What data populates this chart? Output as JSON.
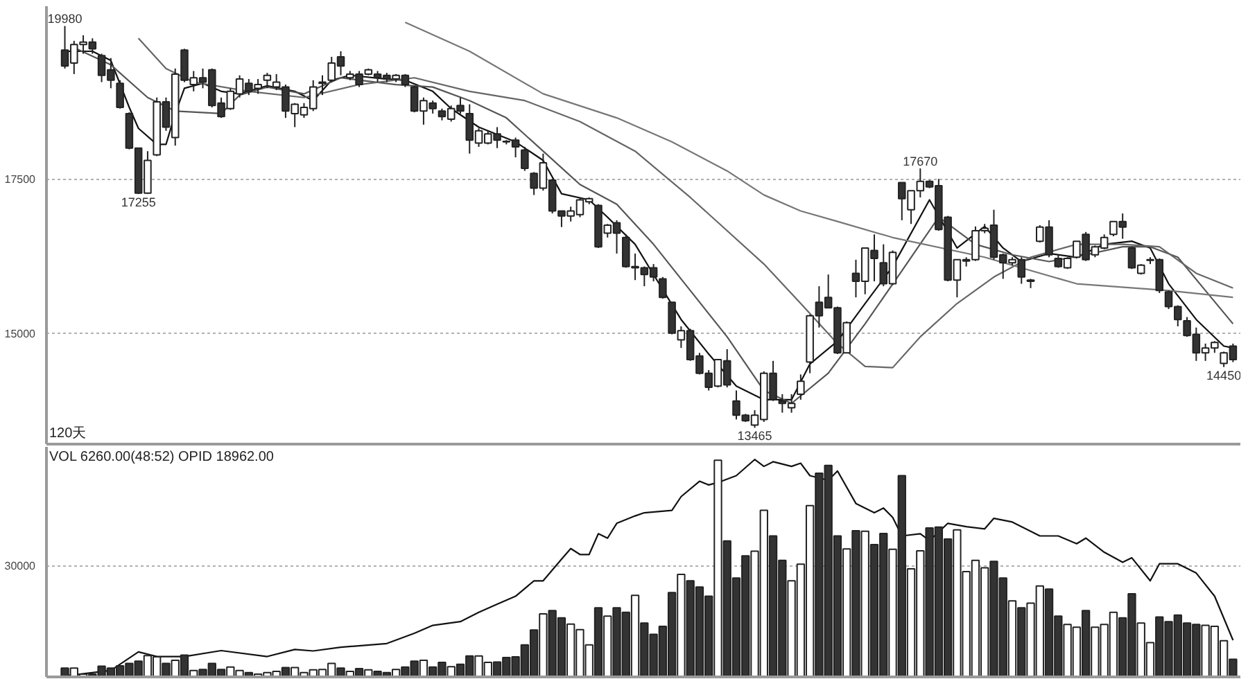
{
  "chart_data": [
    {
      "type": "candlestick",
      "ylim": [
        13200,
        20300
      ],
      "yticks": [
        15000,
        17500
      ],
      "tick_labels": "y",
      "grid": "y",
      "categories": [
        null,
        null,
        null,
        null,
        null,
        null,
        null,
        null,
        null,
        null,
        null,
        null,
        null,
        null,
        null,
        null,
        null,
        null,
        null,
        null,
        null,
        null,
        null,
        null,
        null,
        null,
        null,
        null,
        null,
        null,
        null,
        null,
        null,
        null,
        null,
        null,
        null,
        null,
        null,
        null,
        null,
        null,
        null,
        null,
        null,
        null,
        null,
        null,
        null,
        null,
        null,
        null,
        null,
        null,
        null,
        null,
        null,
        null,
        null,
        null,
        null,
        null,
        null,
        null,
        null,
        null,
        null,
        null,
        null,
        null,
        null,
        null,
        null,
        null,
        null,
        null,
        null,
        null,
        null,
        null,
        null,
        null,
        null,
        null,
        null,
        null,
        null,
        null,
        null,
        null,
        null,
        null,
        null,
        null,
        null,
        null,
        null,
        null,
        null,
        null,
        null,
        null,
        null,
        null,
        null,
        null,
        null,
        null,
        null,
        null,
        null,
        null,
        null,
        null,
        null,
        null,
        null,
        null,
        null,
        null,
        null,
        null,
        null,
        null,
        null,
        null,
        null,
        null
      ],
      "ohlc": [
        [
          19590,
          19980,
          19290,
          19330
        ],
        [
          19380,
          19740,
          19200,
          19680
        ],
        [
          19680,
          19830,
          19530,
          19720
        ],
        [
          19720,
          19780,
          19530,
          19610
        ],
        [
          19500,
          19530,
          19070,
          19180
        ],
        [
          19270,
          19460,
          18970,
          19100
        ],
        [
          19050,
          19100,
          18640,
          18660
        ],
        [
          18560,
          18580,
          17980,
          18000
        ],
        [
          18000,
          18000,
          17255,
          17270
        ],
        [
          17270,
          17950,
          17260,
          17800
        ],
        [
          17890,
          18820,
          17870,
          18750
        ],
        [
          18750,
          18820,
          18280,
          18340
        ],
        [
          18170,
          19290,
          18040,
          19200
        ],
        [
          19590,
          19610,
          19070,
          19100
        ],
        [
          19030,
          19250,
          18920,
          19140
        ],
        [
          19140,
          19290,
          18970,
          19070
        ],
        [
          19270,
          19290,
          18660,
          18690
        ],
        [
          18730,
          18820,
          18490,
          18510
        ],
        [
          18640,
          18970,
          18620,
          18920
        ],
        [
          18880,
          19180,
          18820,
          19120
        ],
        [
          19050,
          19120,
          18860,
          18920
        ],
        [
          18970,
          19120,
          18880,
          19030
        ],
        [
          19100,
          19220,
          18970,
          19180
        ],
        [
          18990,
          19200,
          18940,
          19070
        ],
        [
          18990,
          19030,
          18490,
          18600
        ],
        [
          18560,
          18730,
          18340,
          18710
        ],
        [
          18540,
          18730,
          18490,
          18660
        ],
        [
          18640,
          19100,
          18600,
          18990
        ],
        [
          19050,
          19180,
          18860,
          19070
        ],
        [
          19100,
          19480,
          19070,
          19380
        ],
        [
          19480,
          19570,
          19180,
          19330
        ],
        [
          19140,
          19250,
          19100,
          19200
        ],
        [
          19200,
          19250,
          18990,
          19030
        ],
        [
          19200,
          19290,
          19180,
          19270
        ],
        [
          19200,
          19250,
          19070,
          19140
        ],
        [
          19180,
          19220,
          19070,
          19120
        ],
        [
          19120,
          19200,
          19070,
          19180
        ],
        [
          19180,
          19200,
          18990,
          19030
        ],
        [
          18990,
          19010,
          18580,
          18600
        ],
        [
          18600,
          18820,
          18380,
          18770
        ],
        [
          18730,
          18770,
          18560,
          18640
        ],
        [
          18600,
          18640,
          18450,
          18510
        ],
        [
          18470,
          18690,
          18430,
          18640
        ],
        [
          18690,
          18820,
          18560,
          18600
        ],
        [
          18560,
          18710,
          17910,
          18130
        ],
        [
          18080,
          18320,
          18020,
          18280
        ],
        [
          18080,
          18280,
          18060,
          18230
        ],
        [
          18230,
          18340,
          18000,
          18130
        ],
        [
          18110,
          18130,
          18060,
          18100
        ],
        [
          18130,
          18170,
          17850,
          18020
        ],
        [
          17970,
          18020,
          17630,
          17670
        ],
        [
          17590,
          17610,
          17240,
          17350
        ],
        [
          17350,
          17910,
          17310,
          17760
        ],
        [
          17480,
          17500,
          16940,
          16980
        ],
        [
          16980,
          16980,
          16720,
          16900
        ],
        [
          16900,
          17050,
          16810,
          16980
        ],
        [
          16920,
          17200,
          16880,
          17160
        ],
        [
          17130,
          17200,
          17090,
          17180
        ],
        [
          17070,
          17090,
          16380,
          16400
        ],
        [
          16620,
          16770,
          16550,
          16750
        ],
        [
          16790,
          16830,
          16290,
          16620
        ],
        [
          16550,
          16600,
          16060,
          16080
        ],
        [
          16060,
          16290,
          15860,
          16080
        ],
        [
          16060,
          16080,
          15760,
          15950
        ],
        [
          16060,
          16120,
          15840,
          15910
        ],
        [
          15880,
          15910,
          15560,
          15580
        ],
        [
          15500,
          15500,
          14980,
          15000
        ],
        [
          14890,
          15110,
          14760,
          15040
        ],
        [
          15040,
          15070,
          14550,
          14570
        ],
        [
          14630,
          14680,
          14330,
          14350
        ],
        [
          14350,
          14400,
          14070,
          14120
        ],
        [
          14140,
          14570,
          14120,
          14570
        ],
        [
          14550,
          14740,
          14120,
          14160
        ],
        [
          13900,
          14070,
          13600,
          13670
        ],
        [
          13670,
          13690,
          13560,
          13580
        ],
        [
          13510,
          13750,
          13465,
          13670
        ],
        [
          13600,
          14380,
          13560,
          14350
        ],
        [
          14350,
          14550,
          13900,
          13920
        ],
        [
          13900,
          14010,
          13710,
          13860
        ],
        [
          13790,
          14010,
          13710,
          13860
        ],
        [
          14010,
          14330,
          13920,
          14220
        ],
        [
          14530,
          15300,
          14350,
          15280
        ],
        [
          15500,
          15760,
          15090,
          15280
        ],
        [
          15580,
          15950,
          15410,
          15410
        ],
        [
          15410,
          15430,
          14660,
          14680
        ],
        [
          14680,
          15190,
          14680,
          15170
        ],
        [
          15970,
          16190,
          15580,
          15840
        ],
        [
          15840,
          16380,
          15630,
          16380
        ],
        [
          16340,
          16600,
          15840,
          16210
        ],
        [
          16140,
          16440,
          15760,
          15800
        ],
        [
          15800,
          16340,
          15780,
          16310
        ],
        [
          17440,
          17440,
          16830,
          17180
        ],
        [
          17000,
          17310,
          16770,
          17310
        ],
        [
          17310,
          17670,
          17200,
          17460
        ],
        [
          17460,
          17480,
          17350,
          17370
        ],
        [
          17390,
          17500,
          16660,
          16680
        ],
        [
          16880,
          16900,
          15840,
          15860
        ],
        [
          15860,
          16190,
          15580,
          16190
        ],
        [
          16170,
          16230,
          16080,
          16190
        ],
        [
          16190,
          16730,
          16170,
          16660
        ],
        [
          16660,
          16770,
          16620,
          16700
        ],
        [
          16750,
          17000,
          16190,
          16230
        ],
        [
          16270,
          16290,
          15880,
          16140
        ],
        [
          16140,
          16230,
          16100,
          16190
        ],
        [
          16190,
          16230,
          15800,
          15910
        ],
        [
          15840,
          15880,
          15730,
          15860
        ],
        [
          16490,
          16750,
          16470,
          16720
        ],
        [
          16720,
          16830,
          16230,
          16270
        ],
        [
          16210,
          16270,
          16060,
          16080
        ],
        [
          16060,
          16230,
          16040,
          16210
        ],
        [
          16230,
          16490,
          16210,
          16490
        ],
        [
          16600,
          16640,
          16170,
          16190
        ],
        [
          16270,
          16420,
          16230,
          16400
        ],
        [
          16380,
          16600,
          16360,
          16550
        ],
        [
          16600,
          16810,
          16570,
          16810
        ],
        [
          16810,
          16940,
          16530,
          16720
        ],
        [
          16380,
          16400,
          16040,
          16060
        ],
        [
          15970,
          16120,
          15950,
          16100
        ],
        [
          16180,
          16230,
          16120,
          16190
        ],
        [
          16190,
          16210,
          15650,
          15690
        ],
        [
          15670,
          15690,
          15390,
          15430
        ],
        [
          15430,
          15450,
          15110,
          15220
        ],
        [
          15200,
          15260,
          14940,
          14960
        ],
        [
          14980,
          15090,
          14550,
          14680
        ],
        [
          14680,
          14830,
          14550,
          14760
        ],
        [
          14760,
          14870,
          14680,
          14850
        ],
        [
          14510,
          14700,
          14450,
          14680
        ],
        [
          14790,
          14830,
          14530,
          14570
        ]
      ],
      "colors": [
        "#333333",
        "#ffffff",
        "#ffffff",
        "#333333",
        "#333333",
        "#333333",
        "#333333",
        "#333333",
        "#333333",
        "#ffffff",
        "#ffffff",
        "#333333",
        "#ffffff",
        "#333333",
        "#ffffff",
        "#333333",
        "#333333",
        "#333333",
        "#ffffff",
        "#ffffff",
        "#333333",
        "#ffffff",
        "#ffffff",
        "#ffffff",
        "#333333",
        "#ffffff",
        "#ffffff",
        "#ffffff",
        "#ffffff",
        "#ffffff",
        "#333333",
        "#ffffff",
        "#333333",
        "#ffffff",
        "#333333",
        "#333333",
        "#ffffff",
        "#333333",
        "#333333",
        "#ffffff",
        "#333333",
        "#333333",
        "#ffffff",
        "#333333",
        "#333333",
        "#ffffff",
        "#ffffff",
        "#333333",
        "#333333",
        "#333333",
        "#333333",
        "#333333",
        "#ffffff",
        "#333333",
        "#333333",
        "#ffffff",
        "#ffffff",
        "#ffffff",
        "#333333",
        "#ffffff",
        "#333333",
        "#333333",
        "#ffffff",
        "#333333",
        "#333333",
        "#333333",
        "#333333",
        "#ffffff",
        "#333333",
        "#333333",
        "#333333",
        "#ffffff",
        "#333333",
        "#333333",
        "#333333",
        "#ffffff",
        "#ffffff",
        "#333333",
        "#333333",
        "#ffffff",
        "#ffffff",
        "#ffffff",
        "#333333",
        "#333333",
        "#333333",
        "#ffffff",
        "#333333",
        "#ffffff",
        "#333333",
        "#333333",
        "#ffffff",
        "#333333",
        "#ffffff",
        "#ffffff",
        "#333333",
        "#333333",
        "#333333",
        "#ffffff",
        "#ffffff",
        "#ffffff",
        "#ffffff",
        "#333333",
        "#333333",
        "#ffffff",
        "#333333",
        "#ffffff",
        "#ffffff",
        "#333333",
        "#333333",
        "#ffffff",
        "#ffffff",
        "#333333",
        "#ffffff",
        "#ffffff",
        "#ffffff",
        "#333333",
        "#333333",
        "#ffffff",
        "#ffffff",
        "#333333",
        "#333333",
        "#333333",
        "#333333",
        "#333333",
        "#ffffff",
        "#ffffff",
        "#ffffff",
        "#333333"
      ],
      "series": [
        {
          "type": "line",
          "color": "#111111",
          "values": [
            19570,
            null,
            null,
            19570,
            null,
            19420,
            null,
            18660,
            18320,
            null,
            18060,
            18060,
            18560,
            18970,
            null,
            19050,
            null,
            18920,
            null,
            18880,
            null,
            null,
            19010,
            null,
            null,
            18920,
            null,
            18770,
            null,
            19100,
            null,
            19180,
            null,
            null,
            null,
            19120,
            null,
            19100,
            null,
            null,
            18920,
            null,
            18640,
            null,
            null,
            18340,
            null,
            null,
            null,
            18100,
            null,
            null,
            17800,
            null,
            17260,
            null,
            null,
            17160,
            null,
            16880,
            null,
            null,
            16440,
            null,
            15950,
            null,
            null,
            15220,
            null,
            null,
            14660,
            null,
            null,
            14140,
            null,
            null,
            13920,
            null,
            null,
            13920,
            null,
            14500,
            null,
            null,
            14870,
            null,
            null,
            15480,
            null,
            null,
            16080,
            null,
            null,
            null,
            17160,
            null,
            null,
            16380,
            null,
            null,
            16730,
            null,
            16380,
            null,
            16160,
            null,
            null,
            16290,
            null,
            null,
            16230,
            null,
            null,
            16440,
            null,
            null,
            16490,
            null,
            16380,
            null,
            15800,
            null,
            null,
            15220,
            null,
            null,
            14790,
            14760
          ]
        },
        {
          "type": "line",
          "color": "#555555",
          "values": [
            null,
            19630,
            null,
            null,
            null,
            19350,
            null,
            null,
            null,
            18820,
            null,
            null,
            18600,
            null,
            null,
            null,
            null,
            18560,
            null,
            18860,
            null,
            null,
            18990,
            null,
            null,
            null,
            18880,
            null,
            null,
            null,
            19140,
            null,
            null,
            null,
            null,
            null,
            19030,
            null,
            null,
            null,
            18990,
            null,
            null,
            null,
            18770,
            null,
            null,
            null,
            18490,
            null,
            null,
            null,
            17950,
            null,
            null,
            null,
            17410,
            null,
            null,
            null,
            17090,
            null,
            null,
            null,
            16440,
            null,
            null,
            null,
            15690,
            null,
            null,
            null,
            14940,
            null,
            null,
            null,
            14070,
            null,
            null,
            13860,
            null,
            null,
            null,
            14350,
            null,
            null,
            null,
            15150,
            null,
            null,
            null,
            16010,
            null,
            null,
            null,
            16880,
            null,
            null,
            null,
            16440,
            null,
            null,
            null,
            16270,
            null,
            null,
            null,
            16160,
            null,
            null,
            null,
            16270,
            null,
            null,
            null,
            16400,
            null,
            null,
            16400,
            null,
            null,
            16230,
            null,
            null,
            15690,
            null,
            null,
            15150
          ]
        },
        {
          "type": "line",
          "color": "#666666",
          "values": [
            null,
            null,
            null,
            null,
            null,
            null,
            null,
            null,
            19780,
            null,
            null,
            19290,
            null,
            null,
            19070,
            null,
            null,
            null,
            null,
            null,
            18920,
            null,
            null,
            null,
            null,
            null,
            18820,
            null,
            null,
            null,
            null,
            null,
            19030,
            null,
            null,
            null,
            null,
            null,
            19140,
            null,
            null,
            null,
            null,
            null,
            18920,
            null,
            null,
            null,
            null,
            null,
            18770,
            null,
            null,
            null,
            null,
            null,
            18430,
            null,
            null,
            null,
            null,
            null,
            17950,
            null,
            null,
            null,
            null,
            null,
            17200,
            null,
            null,
            null,
            16660,
            null,
            null,
            null,
            16120,
            null,
            null,
            null,
            15480,
            null,
            null,
            null,
            14830,
            null,
            null,
            14460,
            null,
            null,
            14440,
            null,
            null,
            14940,
            null,
            null,
            null,
            15480,
            null,
            null,
            null,
            15910,
            null,
            null,
            null,
            16230,
            null,
            null,
            null,
            null,
            16440,
            null,
            null,
            null,
            null,
            16440,
            null,
            null,
            null,
            16400,
            null,
            null,
            null,
            15970,
            null,
            null,
            null,
            15730
          ]
        },
        {
          "type": "line",
          "color": "#777777",
          "values": [
            null,
            null,
            null,
            null,
            null,
            null,
            null,
            null,
            null,
            null,
            null,
            null,
            null,
            null,
            null,
            null,
            null,
            null,
            null,
            null,
            null,
            null,
            null,
            null,
            null,
            null,
            null,
            null,
            null,
            null,
            null,
            null,
            null,
            null,
            null,
            null,
            null,
            20040,
            null,
            null,
            null,
            null,
            null,
            null,
            19570,
            null,
            null,
            null,
            null,
            null,
            null,
            null,
            18880,
            null,
            null,
            null,
            null,
            null,
            null,
            null,
            18490,
            null,
            null,
            null,
            null,
            null,
            18100,
            null,
            null,
            null,
            null,
            null,
            17630,
            null,
            null,
            null,
            17240,
            null,
            null,
            null,
            16980,
            null,
            null,
            null,
            16810,
            null,
            null,
            null,
            null,
            null,
            16550,
            null,
            null,
            null,
            null,
            null,
            null,
            null,
            null,
            null,
            16230,
            null,
            null,
            null,
            null,
            null,
            null,
            null,
            null,
            null,
            15800,
            null,
            null,
            null,
            null,
            null,
            null,
            null,
            null,
            null,
            15690,
            null,
            null,
            null,
            null,
            null,
            null,
            15580
          ]
        }
      ],
      "annotations": [
        {
          "text": "19980",
          "y": 19980
        },
        {
          "text": "17255",
          "y": 17255
        },
        {
          "text": "13465",
          "y": 13465
        },
        {
          "text": "17670",
          "y": 17670
        },
        {
          "text": "14450",
          "y": 14450
        },
        "120天"
      ]
    },
    {
      "type": "bar",
      "ylim": [
        0,
        62000
      ],
      "yticks": [
        30000
      ],
      "tick_labels": "y",
      "grid": "y",
      "categories": [
        null,
        null,
        null,
        null,
        null,
        null,
        null,
        null,
        null,
        null,
        null,
        null,
        null,
        null,
        null,
        null,
        null,
        null,
        null,
        null,
        null,
        null,
        null,
        null,
        null,
        null,
        null,
        null,
        null,
        null,
        null,
        null,
        null,
        null,
        null,
        null,
        null,
        null,
        null,
        null,
        null,
        null,
        null,
        null,
        null,
        null,
        null,
        null,
        null,
        null,
        null,
        null,
        null,
        null,
        null,
        null,
        null,
        null,
        null,
        null,
        null,
        null,
        null,
        null,
        null,
        null,
        null,
        null,
        null,
        null,
        null,
        null,
        null,
        null,
        null,
        null,
        null,
        null,
        null,
        null,
        null,
        null,
        null,
        null,
        null,
        null,
        null,
        null,
        null,
        null,
        null,
        null,
        null,
        null,
        null,
        null,
        null,
        null,
        null,
        null,
        null,
        null,
        null,
        null,
        null,
        null,
        null,
        null,
        null,
        null,
        null,
        null,
        null,
        null,
        null,
        null,
        null,
        null,
        null,
        null,
        null,
        null,
        null,
        null,
        null,
        null,
        null,
        null
      ],
      "values": [
        2400,
        2400,
        750,
        750,
        2900,
        2400,
        3000,
        3650,
        4250,
        5750,
        5400,
        3650,
        4500,
        5900,
        1750,
        2000,
        3650,
        2000,
        2650,
        1750,
        1150,
        750,
        1150,
        1500,
        2500,
        2500,
        1150,
        1900,
        2000,
        3650,
        2400,
        1500,
        2250,
        1900,
        1500,
        1150,
        2000,
        2650,
        4250,
        4500,
        2650,
        3900,
        2750,
        3400,
        5650,
        5650,
        3900,
        4000,
        5250,
        5400,
        8650,
        12650,
        17000,
        17900,
        15900,
        14250,
        12750,
        8650,
        18650,
        16400,
        18650,
        17400,
        22000,
        14500,
        11500,
        13650,
        22750,
        27650,
        25900,
        24250,
        21750,
        58400,
        36650,
        26650,
        32650,
        33900,
        44900,
        38000,
        31400,
        25900,
        30400,
        46150,
        54900,
        57000,
        38000,
        34500,
        39400,
        39250,
        35650,
        38650,
        34400,
        54250,
        29150,
        34000,
        40150,
        40400,
        37150,
        39650,
        28400,
        31400,
        29400,
        31150,
        26650,
        20500,
        18650,
        19900,
        24500,
        23650,
        16400,
        14150,
        13400,
        17900,
        13400,
        14150,
        17400,
        15900,
        22400,
        14500,
        9250,
        16150,
        14900,
        16650,
        14500,
        14150,
        13900,
        13650,
        9750,
        4750
      ],
      "colors": [
        "#333333",
        "#ffffff",
        "#ffffff",
        "#333333",
        "#333333",
        "#333333",
        "#333333",
        "#333333",
        "#333333",
        "#ffffff",
        "#ffffff",
        "#333333",
        "#ffffff",
        "#333333",
        "#ffffff",
        "#333333",
        "#333333",
        "#333333",
        "#ffffff",
        "#ffffff",
        "#333333",
        "#ffffff",
        "#ffffff",
        "#ffffff",
        "#333333",
        "#ffffff",
        "#ffffff",
        "#ffffff",
        "#ffffff",
        "#ffffff",
        "#333333",
        "#ffffff",
        "#333333",
        "#ffffff",
        "#333333",
        "#333333",
        "#ffffff",
        "#333333",
        "#333333",
        "#ffffff",
        "#333333",
        "#333333",
        "#ffffff",
        "#333333",
        "#333333",
        "#ffffff",
        "#ffffff",
        "#333333",
        "#333333",
        "#333333",
        "#333333",
        "#333333",
        "#ffffff",
        "#333333",
        "#333333",
        "#ffffff",
        "#ffffff",
        "#ffffff",
        "#333333",
        "#ffffff",
        "#333333",
        "#333333",
        "#ffffff",
        "#333333",
        "#333333",
        "#333333",
        "#333333",
        "#ffffff",
        "#333333",
        "#333333",
        "#333333",
        "#ffffff",
        "#333333",
        "#333333",
        "#333333",
        "#ffffff",
        "#ffffff",
        "#333333",
        "#333333",
        "#ffffff",
        "#ffffff",
        "#ffffff",
        "#333333",
        "#333333",
        "#333333",
        "#ffffff",
        "#333333",
        "#ffffff",
        "#333333",
        "#333333",
        "#ffffff",
        "#333333",
        "#ffffff",
        "#ffffff",
        "#333333",
        "#333333",
        "#333333",
        "#ffffff",
        "#ffffff",
        "#ffffff",
        "#ffffff",
        "#333333",
        "#333333",
        "#ffffff",
        "#333333",
        "#ffffff",
        "#ffffff",
        "#333333",
        "#333333",
        "#ffffff",
        "#ffffff",
        "#333333",
        "#ffffff",
        "#ffffff",
        "#ffffff",
        "#333333",
        "#333333",
        "#ffffff",
        "#ffffff",
        "#333333",
        "#333333",
        "#333333",
        "#333333",
        "#333333",
        "#ffffff",
        "#ffffff",
        "#ffffff",
        "#333333"
      ],
      "series": [
        {
          "type": "line",
          "color": "#111111",
          "values": [
            250,
            null,
            null,
            null,
            null,
            1750,
            null,
            null,
            6750,
            null,
            5500,
            null,
            null,
            5500,
            null,
            null,
            null,
            7100,
            null,
            null,
            null,
            null,
            5500,
            null,
            null,
            7400,
            null,
            7000,
            null,
            null,
            8000,
            null,
            null,
            null,
            null,
            9000,
            null,
            null,
            11750,
            null,
            13900,
            null,
            null,
            14900,
            null,
            17400,
            null,
            19600,
            null,
            21750,
            null,
            25900,
            25900,
            null,
            31750,
            34600,
            33000,
            33000,
            38600,
            37400,
            41400,
            null,
            43400,
            44250,
            null,
            null,
            44900,
            48600,
            null,
            52750,
            51750,
            52400,
            null,
            54250,
            null,
            58600,
            56750,
            58000,
            null,
            56750,
            57600,
            54250,
            null,
            53000,
            55500,
            null,
            46750,
            null,
            44250,
            45500,
            43000,
            38000,
            null,
            38600,
            36750,
            null,
            41400,
            null,
            40500,
            null,
            39900,
            42750,
            null,
            41750,
            null,
            null,
            38000,
            null,
            38000,
            null,
            35900,
            37400,
            null,
            33600,
            null,
            30900,
            32100,
            null,
            25900,
            30500,
            null,
            30500,
            null,
            28000,
            null,
            21750,
            null,
            9900
          ]
        }
      ],
      "annotations": [
        "VOL 6260.00(48:52) OPID 18962.00"
      ]
    }
  ]
}
